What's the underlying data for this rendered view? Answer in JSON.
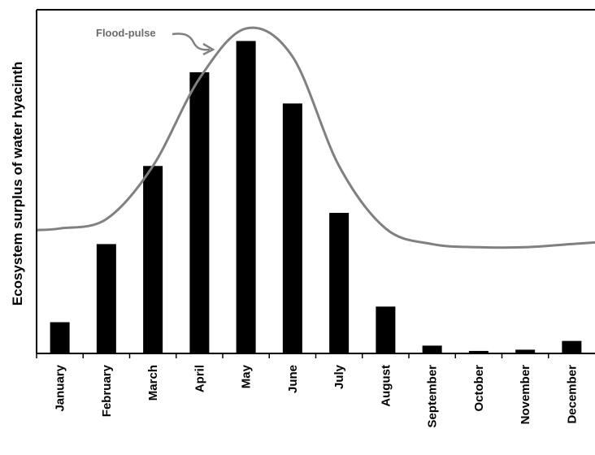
{
  "chart_data": {
    "type": "bar",
    "title": "",
    "xlabel": "",
    "ylabel": "Ecosystem surplus of water hyacinth",
    "categories": [
      "January",
      "February",
      "March",
      "April",
      "May",
      "June",
      "July",
      "August",
      "September",
      "October",
      "November",
      "December"
    ],
    "series": [
      {
        "values": [
          10,
          35,
          60,
          90,
          100,
          80,
          45,
          15,
          2.5,
          0.8,
          1.2,
          4
        ]
      }
    ],
    "overlay_line": {
      "name": "Flood-pulse",
      "color": "#808080",
      "x": [
        0,
        1,
        2,
        3,
        4,
        5,
        6,
        7,
        8,
        9,
        10,
        11
      ],
      "values": [
        40,
        43,
        60,
        88,
        104,
        95,
        60,
        40,
        35,
        34,
        34,
        35
      ]
    },
    "ylim": [
      0,
      110
    ],
    "grid": false,
    "annotations": [
      {
        "text": "Flood-pulse",
        "points_to": "overlay_line"
      }
    ],
    "bar_color": "#000000"
  }
}
